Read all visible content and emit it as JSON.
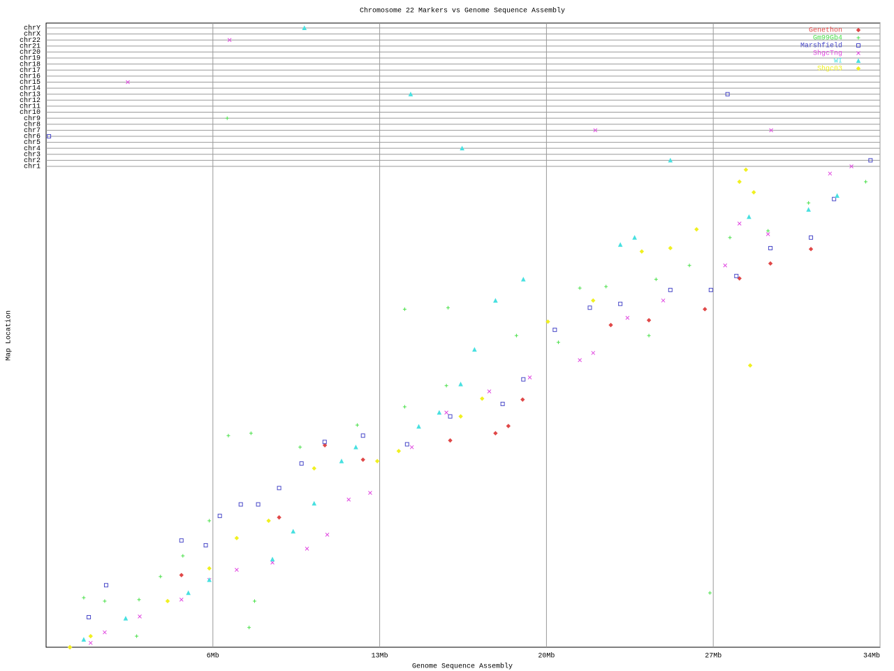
{
  "chart_data": {
    "type": "scatter",
    "title": "Chromosome 22 Markers vs Genome Sequence Assembly",
    "x_label": "Genome Sequence Assembly",
    "y_label": "Map Location",
    "xlim": [
      -1,
      34
    ],
    "xticks": [
      {
        "value": 6,
        "label": "6Mb"
      },
      {
        "value": 13,
        "label": "13Mb"
      },
      {
        "value": 20,
        "label": "20Mb"
      },
      {
        "value": 27,
        "label": "27Mb"
      },
      {
        "value": 34,
        "label": "34Mb"
      }
    ],
    "ylim": [
      0,
      100
    ],
    "y_categories": [
      "chr1",
      "chr2",
      "chr3",
      "chr4",
      "chr5",
      "chr6",
      "chr7",
      "chr8",
      "chr9",
      "chr10",
      "chr11",
      "chr12",
      "chr13",
      "chr14",
      "chr15",
      "chr16",
      "chr17",
      "chr18",
      "chr19",
      "chr20",
      "chr21",
      "chr22",
      "chrX",
      "chrY"
    ],
    "grid": true,
    "legend": "upper right",
    "series": [
      {
        "name": "Genethon",
        "color": "#e04848",
        "marker": "diamond",
        "x": [
          0,
          4.68,
          8.78,
          10.7,
          12.3,
          15.96,
          17.86,
          18.4,
          19.0,
          22.7,
          24.3,
          26.65,
          28.1,
          29.4,
          31.1
        ],
        "values": [
          0,
          15,
          27,
          42,
          39,
          43,
          44.5,
          46,
          51.5,
          67,
          68,
          70.3,
          76.7,
          79.8,
          82.8
        ],
        "offchr_x": [],
        "offchr": []
      },
      {
        "name": "Gm99Gb4",
        "color": "#48e048",
        "marker": "plus",
        "x": [
          0.58,
          1.46,
          2.9,
          3.8,
          4.74,
          5.85,
          6.65,
          7.6,
          9.66,
          12.06,
          14.05,
          15.8,
          14.05,
          15.87,
          18.74,
          20.5,
          21.4,
          22.5,
          24.6,
          26.0,
          27.7,
          29.3,
          31.0,
          33.4,
          26.86,
          7.52,
          7.75,
          2.8,
          24.3
        ],
        "values": [
          10.3,
          9.6,
          9.9,
          14.7,
          19,
          26.3,
          44,
          44.5,
          41.6,
          46.2,
          50,
          54.4,
          70.3,
          70.6,
          64.8,
          63.4,
          74.7,
          75,
          76.5,
          79.4,
          85.2,
          86.6,
          92.4,
          96.8,
          11.3,
          4.1,
          9.6,
          2.3,
          64.8
        ],
        "offchr_x": [
          6.6
        ],
        "offchr": [
          "chr9"
        ]
      },
      {
        "name": "Marshfield",
        "color": "#4848c8",
        "marker": "square",
        "x": [
          0.79,
          1.52,
          4.68,
          5.7,
          6.29,
          7.17,
          7.9,
          8.78,
          9.72,
          10.69,
          12.3,
          14.15,
          15.96,
          18.16,
          19.03,
          20.35,
          21.82,
          23.1,
          25.2,
          26.9,
          27.97,
          29.4,
          31.1,
          32.07
        ],
        "values": [
          6.25,
          12.9,
          22.2,
          21.2,
          27.3,
          29.7,
          29.7,
          33.1,
          38.2,
          42.7,
          44,
          42.2,
          48,
          50.6,
          55.7,
          66,
          70.6,
          71.4,
          74.3,
          74.3,
          77.2,
          83,
          85.2,
          93.2
        ],
        "offchr_x": [
          -0.88,
          33.6,
          27.6
        ],
        "offchr": [
          "chr6",
          "chr2",
          "chr13"
        ]
      },
      {
        "name": "ShgcTng",
        "color": "#e048e0",
        "marker": "cross",
        "x": [
          0.87,
          1.46,
          2.93,
          4.68,
          5.85,
          7.0,
          8.5,
          9.95,
          10.8,
          11.7,
          12.6,
          14.35,
          15.8,
          17.6,
          19.3,
          21.4,
          21.96,
          23.4,
          24.9,
          27.5,
          28.1,
          29.3,
          31.9,
          32.8
        ],
        "values": [
          0.9,
          3.1,
          6.4,
          9.9,
          14,
          16.1,
          17.6,
          20.5,
          23.4,
          30.7,
          32.1,
          41.6,
          48.8,
          53.2,
          56.1,
          59.7,
          61.2,
          68.5,
          72.1,
          79.4,
          88.1,
          85.9,
          98.5,
          100
        ],
        "offchr_x": [
          2.43,
          6.7,
          22.05,
          29.43
        ],
        "offchr": [
          "chr15",
          "chr22",
          "chr7",
          "chr7"
        ]
      },
      {
        "name": "WI",
        "color": "#48e0e0",
        "marker": "triangle",
        "x": [
          0.58,
          2.34,
          4.97,
          5.85,
          8.5,
          9.37,
          10.25,
          11.4,
          12.0,
          14.64,
          15.5,
          16.4,
          16.98,
          17.86,
          19.03,
          23.1,
          23.7,
          28.5,
          31.0,
          32.2
        ],
        "values": [
          1.6,
          6,
          11.3,
          14,
          18.3,
          24.1,
          29.9,
          38.7,
          41.6,
          45.9,
          48.8,
          54.7,
          61.9,
          72.1,
          76.5,
          83.7,
          85.2,
          89.5,
          91,
          93.9
        ],
        "offchr_x": [
          9.84,
          14.3,
          16.46,
          25.2
        ],
        "offchr": [
          "chrY",
          "chr13",
          "chr4",
          "chr2"
        ]
      },
      {
        "name": "Shgc03",
        "color": "#f0f020",
        "marker": "diamond",
        "x": [
          0,
          0.87,
          4.1,
          5.85,
          7.0,
          8.34,
          10.25,
          12.9,
          13.8,
          16.4,
          17.3,
          20.06,
          21.96,
          24.0,
          25.2,
          26.3,
          28.1,
          28.37,
          28.7,
          28.55
        ],
        "values": [
          0,
          2.3,
          9.6,
          16.4,
          22.7,
          26.3,
          37.2,
          38.7,
          40.8,
          48,
          51.7,
          67.7,
          72.1,
          82.3,
          83,
          86.9,
          96.8,
          99.3,
          94.6,
          58.6
        ],
        "offchr_x": [],
        "offchr": []
      }
    ]
  }
}
